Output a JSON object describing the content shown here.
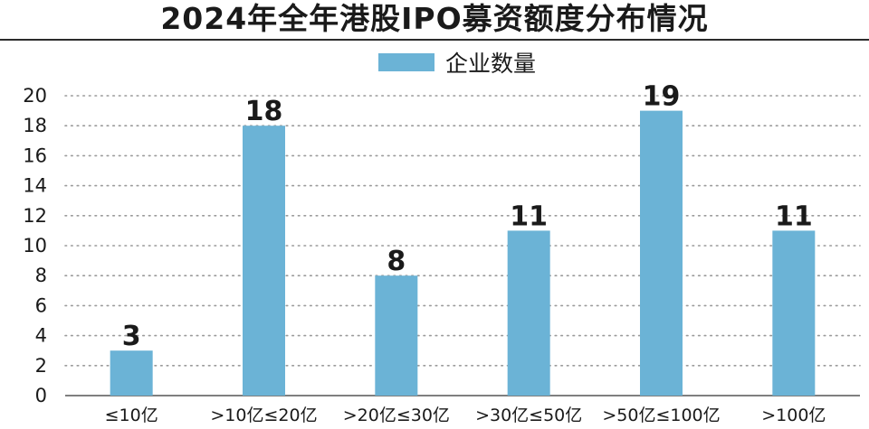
{
  "chart_data": {
    "type": "bar",
    "title": "2024年全年港股IPO募资额度分布情况",
    "categories": [
      "≤10亿",
      ">10亿≤20亿",
      ">20亿≤30亿",
      ">30亿≤50亿",
      ">50亿≤100亿",
      ">100亿"
    ],
    "series": [
      {
        "name": "企业数量",
        "values": [
          3,
          18,
          8,
          11,
          19,
          11
        ]
      }
    ],
    "data_labels": [
      "3",
      "18",
      "8",
      "11",
      "19",
      "11"
    ],
    "y_ticks": [
      "0",
      "2",
      "4",
      "6",
      "8",
      "10",
      "12",
      "14",
      "16",
      "18",
      "20"
    ],
    "ylim": [
      0,
      20
    ],
    "xlabel": "",
    "ylabel": "",
    "grid": "horizontal-dotted",
    "legend_position": "top-center",
    "colors": {
      "bar": "#6bb3d6",
      "grid": "#9a9a9a",
      "axis": "#555555"
    }
  }
}
